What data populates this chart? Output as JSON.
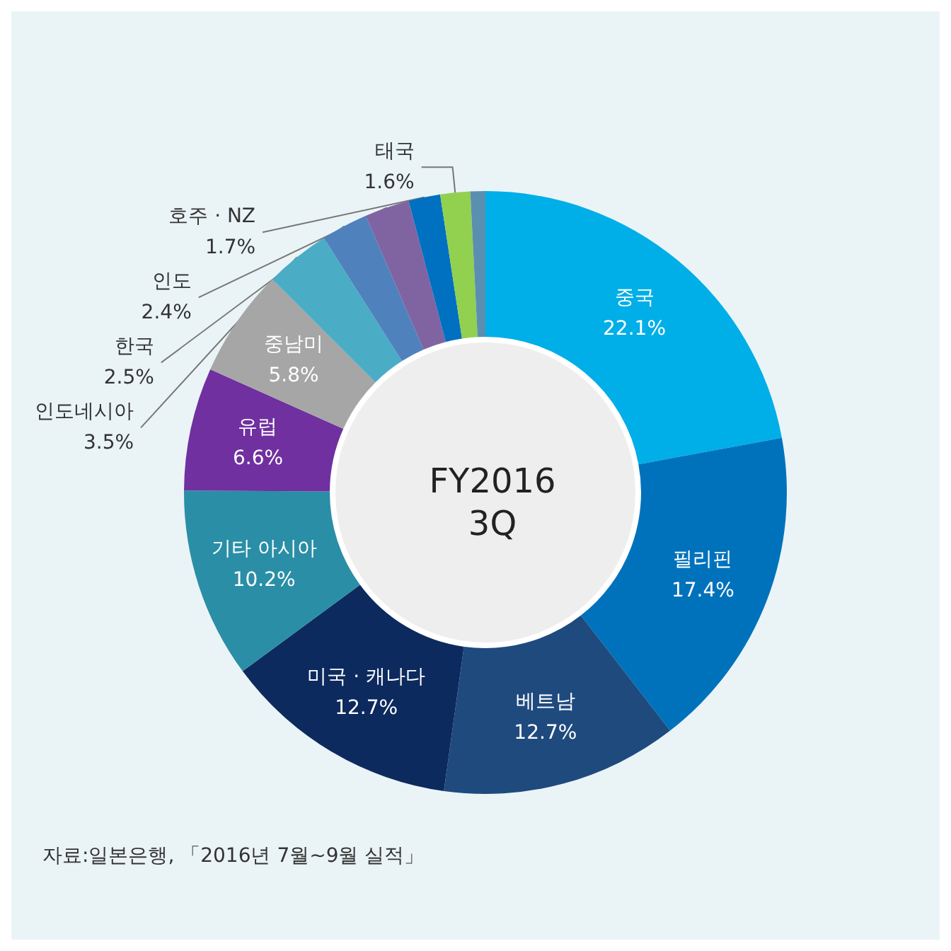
{
  "chart_data": {
    "type": "donut",
    "title": "FY2016\n3Q",
    "categories": [
      "중국",
      "필리핀",
      "베트남",
      "미국 · 캐나다",
      "기타 아시아",
      "유럽",
      "중남미",
      "인도네시아",
      "한국",
      "인도",
      "호주 · NZ",
      "태국",
      null
    ],
    "values": [
      22.1,
      17.4,
      12.7,
      12.7,
      10.2,
      6.6,
      5.8,
      3.5,
      2.5,
      2.4,
      1.7,
      1.6,
      0.8
    ],
    "value_labels": [
      "22.1%",
      "17.4%",
      "12.7%",
      "12.7%",
      "10.2%",
      "6.6%",
      "5.8%",
      "3.5%",
      "2.5%",
      "2.4%",
      "1.7%",
      "1.6%",
      null
    ],
    "colors": [
      "#00aee8",
      "#0072bc",
      "#1f4a7e",
      "#0d2a5e",
      "#2a8ea6",
      "#7030a0",
      "#a6a6a6",
      "#4bacc6",
      "#4f81bd",
      "#8064a2",
      "#0070c0",
      "#92d050",
      "#5b8fb0"
    ],
    "legend": false,
    "annotations": [
      "자료:일본은행, 「2016년 7월~9월 실적」"
    ]
  }
}
